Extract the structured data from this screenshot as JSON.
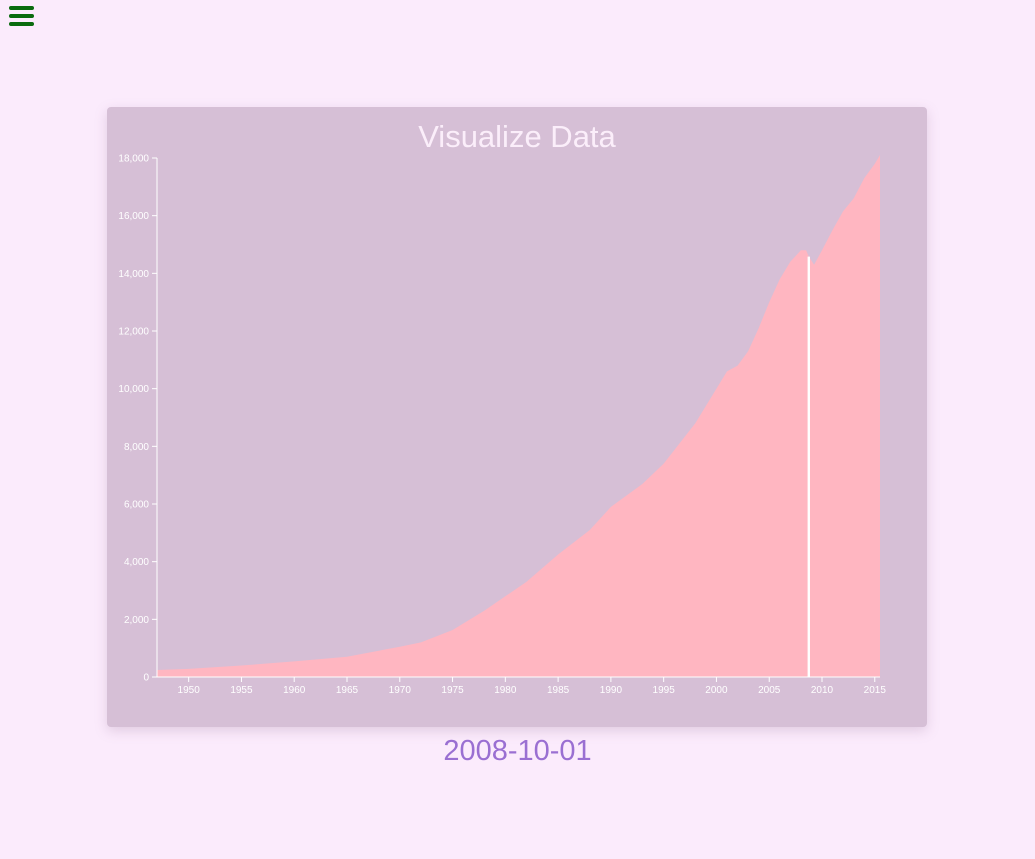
{
  "menu": {
    "icon": "hamburger-menu-icon"
  },
  "colors": {
    "page_background": "#fbebfc",
    "card_background": "#d6bfd6",
    "area_fill": "#ffb6c1",
    "axis": "#ffffff",
    "menu_icon": "#0a6b0f",
    "date_text": "#9a6fd2"
  },
  "chart_data": {
    "type": "area",
    "title": "Visualize Data",
    "xlabel": "",
    "ylabel": "",
    "x_range": [
      "1947-01-01",
      "2015-07-01"
    ],
    "ylim": [
      0,
      18000
    ],
    "x_ticks": [
      "1950",
      "1955",
      "1960",
      "1965",
      "1970",
      "1975",
      "1980",
      "1985",
      "1990",
      "1995",
      "2000",
      "2005",
      "2010",
      "2015"
    ],
    "y_ticks": [
      "0",
      "2,000",
      "4,000",
      "6,000",
      "8,000",
      "10,000",
      "12,000",
      "14,000",
      "16,000",
      "18,000"
    ],
    "grid": false,
    "legend": "none",
    "highlight": {
      "date": "2008-10-01",
      "value": 14580
    },
    "x": [
      "1947-01-01",
      "1950-01-01",
      "1955-01-01",
      "1960-01-01",
      "1965-01-01",
      "1970-01-01",
      "1972-01-01",
      "1975-01-01",
      "1978-01-01",
      "1980-01-01",
      "1982-01-01",
      "1985-01-01",
      "1988-01-01",
      "1990-01-01",
      "1993-01-01",
      "1995-01-01",
      "1998-01-01",
      "2000-01-01",
      "2001-01-01",
      "2002-01-01",
      "2003-01-01",
      "2004-01-01",
      "2005-01-01",
      "2006-01-01",
      "2007-01-01",
      "2008-01-01",
      "2008-07-01",
      "2008-10-01",
      "2009-04-01",
      "2010-01-01",
      "2011-01-01",
      "2012-01-01",
      "2013-01-01",
      "2014-01-01",
      "2015-01-01",
      "2015-07-01"
    ],
    "values": [
      243,
      280,
      400,
      540,
      700,
      1050,
      1200,
      1630,
      2300,
      2800,
      3300,
      4250,
      5100,
      5900,
      6700,
      7400,
      8800,
      10000,
      10600,
      10800,
      11300,
      12100,
      13000,
      13800,
      14400,
      14800,
      14800,
      14580,
      14300,
      14800,
      15500,
      16150,
      16600,
      17300,
      17800,
      18100
    ]
  },
  "date_readout": "2008-10-01"
}
